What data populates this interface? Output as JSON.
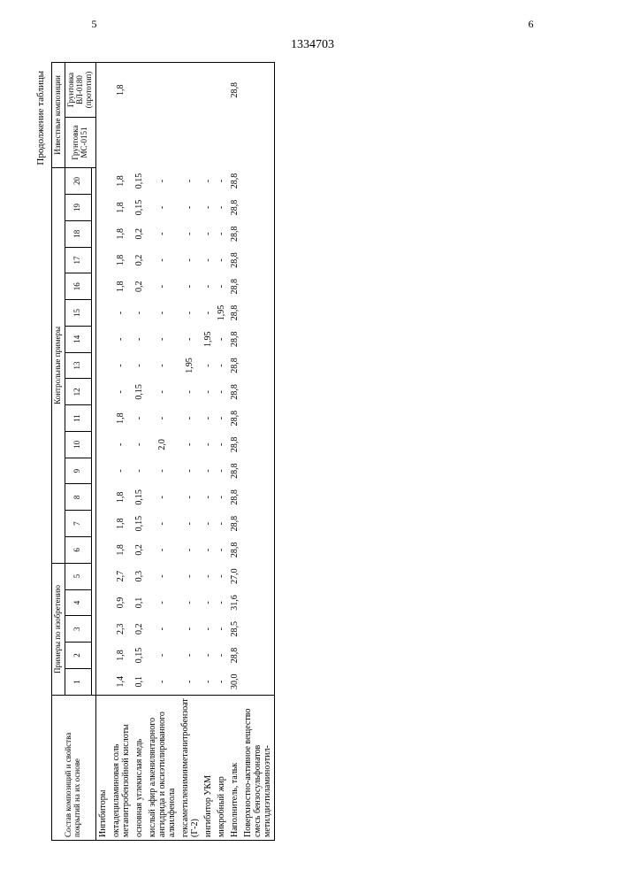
{
  "page_left": "5",
  "page_right": "6",
  "doc_number": "1334703",
  "continuation": "Продолжение таблицы",
  "col_header_main": "Состав композиций и свойства покрытий на их основе",
  "group1_title": "Примеры по изобретению",
  "group2_title": "Контрольные примеры",
  "group3_title": "Известные композиции",
  "known_col1": "Грунтовка МС-0151",
  "known_col2": "Грунтовка ВЛ-0180 (прототип)",
  "col_nums": [
    "1",
    "2",
    "3",
    "4",
    "5",
    "6",
    "7",
    "8",
    "9",
    "10",
    "11",
    "12",
    "13",
    "14",
    "15",
    "16",
    "17",
    "18",
    "19",
    "20"
  ],
  "rows": [
    {
      "label": "Ингибиторы",
      "section": true
    },
    {
      "label": "октадециламиновая соль метанитробензойной кислоты",
      "vals": [
        "1,4",
        "1,8",
        "2,3",
        "0,9",
        "2,7",
        "1,8",
        "1,8",
        "1,8",
        "-",
        "-",
        "1,8",
        "-",
        "-",
        "-",
        "-",
        "1,8",
        "1,8",
        "1,8",
        "1,8",
        "1,8",
        "",
        "1,8"
      ]
    },
    {
      "label": "основная углекислая медь",
      "vals": [
        "0,1",
        "0,15",
        "0,2",
        "0,1",
        "0,3",
        "0,2",
        "0,15",
        "0,15",
        "-",
        "-",
        "-",
        "0,15",
        "-",
        "-",
        "-",
        "0,2",
        "0,2",
        "0,2",
        "0,15",
        "0,15",
        "",
        ""
      ]
    },
    {
      "label": "кислый эфир алкенилянтарного ангидрида и оксиэтилированного алкилфенола",
      "vals": [
        "-",
        "-",
        "-",
        "-",
        "-",
        "-",
        "-",
        "-",
        "-",
        "2,0",
        "-",
        "-",
        "-",
        "-",
        "-",
        "-",
        "-",
        "-",
        "-",
        "-",
        "",
        ""
      ]
    },
    {
      "label": "гексаметилениминметанитробензоат (Г-2)",
      "vals": [
        "-",
        "-",
        "-",
        "-",
        "-",
        "-",
        "-",
        "-",
        "-",
        "-",
        "-",
        "-",
        "1,95",
        "-",
        "-",
        "-",
        "-",
        "-",
        "-",
        "-",
        "",
        ""
      ]
    },
    {
      "label": "ингибитор УКМ",
      "vals": [
        "-",
        "-",
        "-",
        "-",
        "-",
        "-",
        "-",
        "-",
        "-",
        "-",
        "-",
        "-",
        "-",
        "1,95",
        "-",
        "-",
        "-",
        "-",
        "-",
        "-",
        "",
        ""
      ]
    },
    {
      "label": "микробный жир",
      "vals": [
        "-",
        "-",
        "-",
        "-",
        "-",
        "-",
        "-",
        "-",
        "-",
        "-",
        "-",
        "-",
        "-",
        "-",
        "1,95",
        "-",
        "-",
        "-",
        "-",
        "-",
        "",
        ""
      ]
    },
    {
      "label": "Наполнитель, тальк",
      "vals": [
        "30,0",
        "28,8",
        "28,5",
        "31,6",
        "27,0",
        "28,8",
        "28,8",
        "28,8",
        "28,8",
        "28,8",
        "28,8",
        "28,8",
        "28,8",
        "28,8",
        "28,8",
        "28,8",
        "28,8",
        "28,8",
        "28,8",
        "28,8",
        "",
        "28,8"
      ]
    },
    {
      "label": "Поверхностно-активное вещество смесь бензосульфонатов метилдиэтиламиноэтил-",
      "section": false,
      "vals": [
        "",
        "",
        "",
        "",
        "",
        "",
        "",
        "",
        "",
        "",
        "",
        "",
        "",
        "",
        "",
        "",
        "",
        "",
        "",
        "",
        "",
        ""
      ]
    }
  ]
}
